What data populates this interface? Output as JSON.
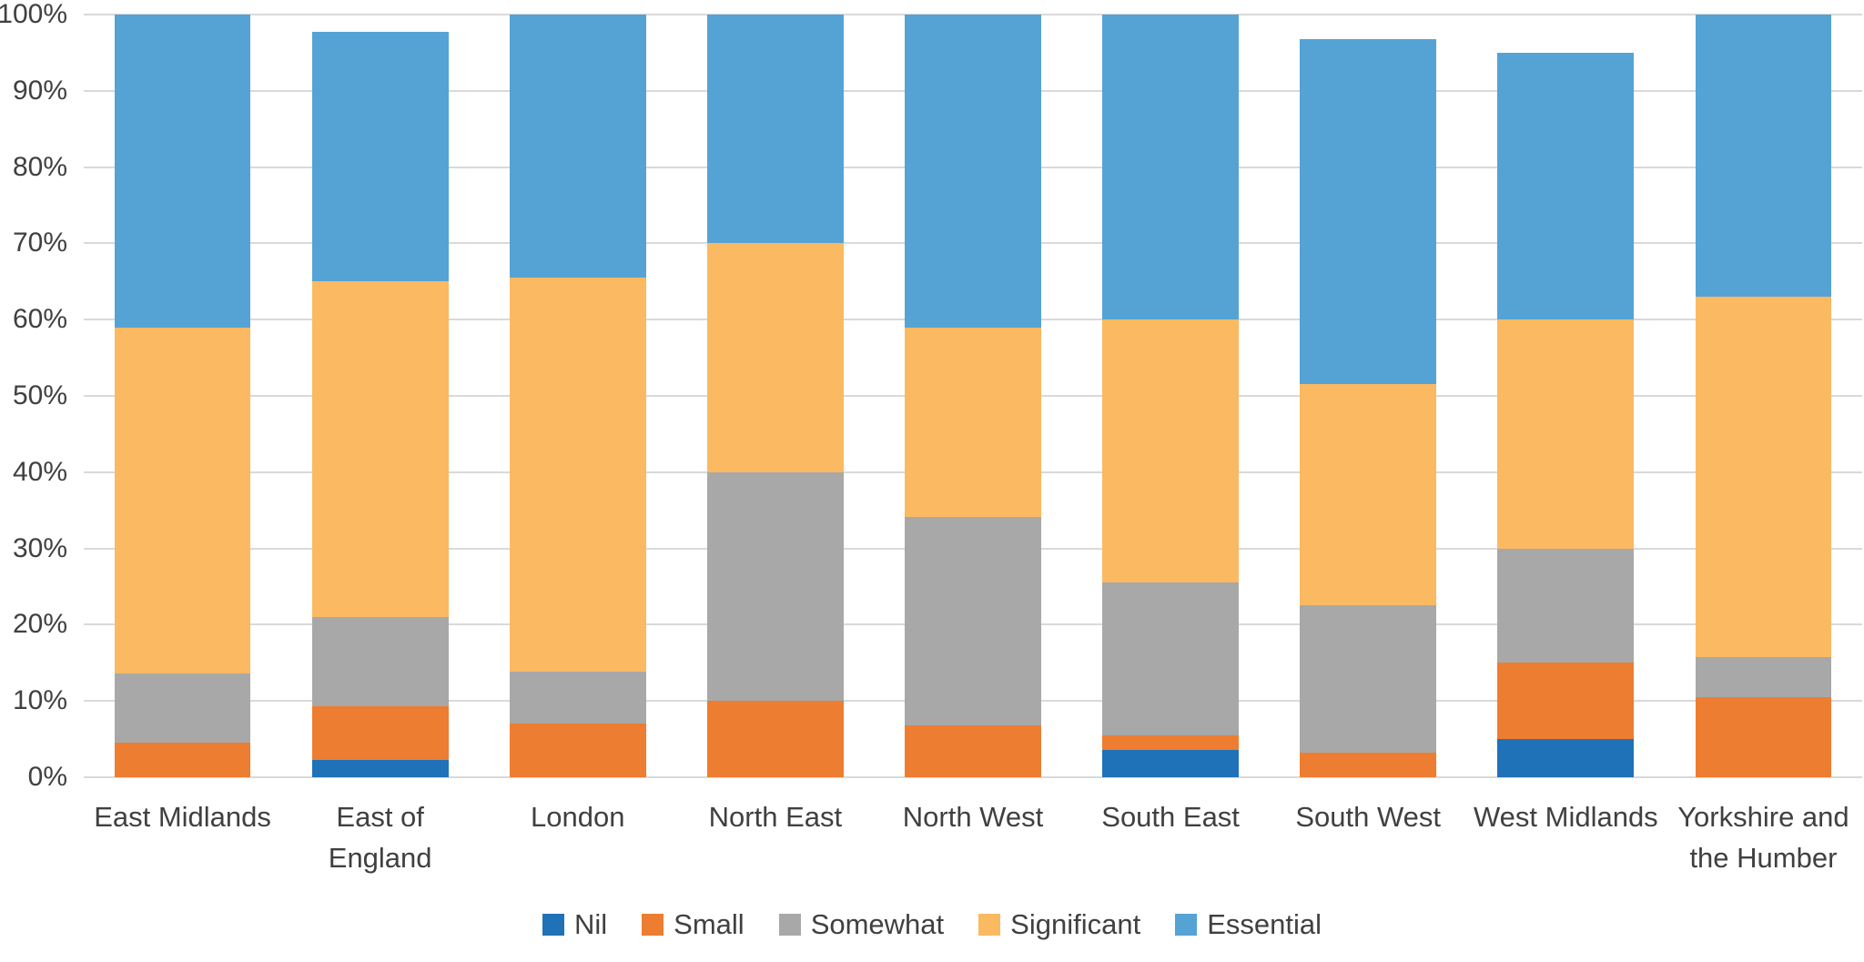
{
  "chart_data": {
    "type": "bar",
    "stacked": true,
    "units": "percent",
    "title": "",
    "xlabel": "",
    "ylabel": "",
    "ylim": [
      0,
      100
    ],
    "grid": true,
    "legend_position": "bottom",
    "y_ticks": [
      "0%",
      "10%",
      "20%",
      "30%",
      "40%",
      "50%",
      "60%",
      "70%",
      "80%",
      "90%",
      "100%"
    ],
    "categories": [
      "East Midlands",
      "East of England",
      "London",
      "North East",
      "North West",
      "South East",
      "South West",
      "West Midlands",
      "Yorkshire and the Humber"
    ],
    "series": [
      {
        "name": "Nil",
        "color": "#1f72b8",
        "values": [
          0,
          2.3,
          0,
          0,
          0,
          3.6,
          0,
          5,
          0
        ]
      },
      {
        "name": "Small",
        "color": "#ed7d31",
        "values": [
          4.5,
          7.0,
          7.0,
          10,
          6.8,
          1.9,
          3.2,
          10,
          10.5
        ]
      },
      {
        "name": "Somewhat",
        "color": "#a8a8a8",
        "values": [
          9.1,
          11.7,
          6.9,
          30,
          27.3,
          20.0,
          19.4,
          15,
          5.3
        ]
      },
      {
        "name": "Significant",
        "color": "#fbb961",
        "values": [
          45.4,
          44.0,
          51.6,
          30,
          24.9,
          34.5,
          29.0,
          30,
          47.2
        ]
      },
      {
        "name": "Essential",
        "color": "#55a3d5",
        "values": [
          41.0,
          32.7,
          34.5,
          30,
          41.0,
          40.0,
          45.2,
          35,
          37.0
        ]
      }
    ],
    "colors": {
      "gridline": "#d9d9d9",
      "axis_text": "#404040"
    }
  }
}
